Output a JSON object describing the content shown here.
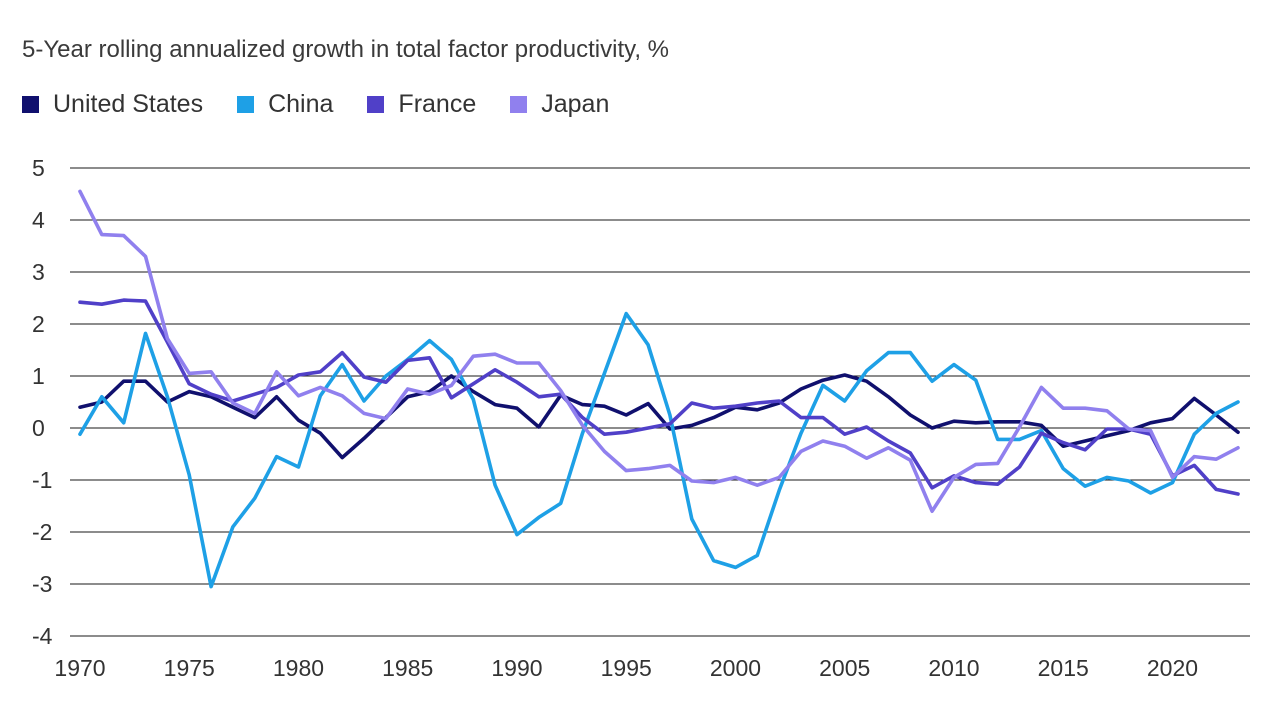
{
  "chart_data": {
    "type": "line",
    "title": "5-Year rolling annualized growth in total factor productivity, %",
    "xlabel": "",
    "ylabel": "",
    "ylim": [
      -4,
      5
    ],
    "xlim": [
      1970,
      2023
    ],
    "yticks": [
      5,
      4,
      3,
      2,
      1,
      0,
      -1,
      -2,
      -3,
      -4
    ],
    "xticks": [
      1970,
      1975,
      1980,
      1985,
      1990,
      1995,
      2000,
      2005,
      2010,
      2015,
      2020
    ],
    "grid": "horizontal",
    "legend_position": "top-left",
    "x": [
      1970,
      1971,
      1972,
      1973,
      1974,
      1975,
      1976,
      1977,
      1978,
      1979,
      1980,
      1981,
      1982,
      1983,
      1984,
      1985,
      1986,
      1987,
      1988,
      1989,
      1990,
      1991,
      1992,
      1993,
      1994,
      1995,
      1996,
      1997,
      1998,
      1999,
      2000,
      2001,
      2002,
      2003,
      2004,
      2005,
      2006,
      2007,
      2008,
      2009,
      2010,
      2011,
      2012,
      2013,
      2014,
      2015,
      2016,
      2017,
      2018,
      2019,
      2020,
      2021,
      2022,
      2023
    ],
    "series": [
      {
        "name": "United States",
        "color": "#10106e",
        "values": [
          0.4,
          0.5,
          0.9,
          0.9,
          0.5,
          0.7,
          0.6,
          0.4,
          0.2,
          0.6,
          0.15,
          -0.1,
          -0.57,
          -0.2,
          0.2,
          0.6,
          0.7,
          1.0,
          0.7,
          0.45,
          0.38,
          0.02,
          0.63,
          0.45,
          0.42,
          0.25,
          0.47,
          -0.02,
          0.05,
          0.2,
          0.4,
          0.35,
          0.48,
          0.75,
          0.92,
          1.02,
          0.9,
          0.6,
          0.25,
          0.0,
          0.13,
          0.1,
          0.12,
          0.12,
          0.05,
          -0.35,
          -0.25,
          -0.15,
          -0.05,
          0.1,
          0.18,
          0.57,
          0.25,
          -0.08
        ]
      },
      {
        "name": "China",
        "color": "#1ea0e6",
        "values": [
          -0.12,
          0.6,
          0.1,
          1.82,
          0.6,
          -0.9,
          -3.05,
          -1.9,
          -1.35,
          -0.55,
          -0.75,
          0.62,
          1.22,
          0.52,
          1.0,
          1.32,
          1.68,
          1.32,
          0.55,
          -1.1,
          -2.05,
          -1.72,
          -1.45,
          -0.1,
          1.05,
          2.2,
          1.6,
          0.25,
          -1.75,
          -2.55,
          -2.68,
          -2.45,
          -1.2,
          -0.1,
          0.82,
          0.52,
          1.1,
          1.45,
          1.45,
          0.9,
          1.22,
          0.92,
          -0.22,
          -0.22,
          -0.05,
          -0.78,
          -1.12,
          -0.95,
          -1.02,
          -1.25,
          -1.05,
          -0.12,
          0.28,
          0.5
        ]
      },
      {
        "name": "France",
        "color": "#5040c8",
        "values": [
          2.42,
          2.38,
          2.46,
          2.44,
          1.65,
          0.85,
          0.65,
          0.52,
          0.65,
          0.78,
          1.02,
          1.08,
          1.45,
          0.98,
          0.88,
          1.3,
          1.35,
          0.58,
          0.85,
          1.12,
          0.88,
          0.6,
          0.65,
          0.2,
          -0.12,
          -0.08,
          0.0,
          0.08,
          0.48,
          0.38,
          0.42,
          0.48,
          0.52,
          0.2,
          0.2,
          -0.12,
          0.02,
          -0.25,
          -0.48,
          -1.15,
          -0.92,
          -1.05,
          -1.08,
          -0.75,
          -0.1,
          -0.28,
          -0.42,
          -0.02,
          -0.02,
          -0.12,
          -0.92,
          -0.72,
          -1.18,
          -1.27
        ]
      },
      {
        "name": "Japan",
        "color": "#9080ee",
        "values": [
          4.55,
          3.72,
          3.7,
          3.3,
          1.72,
          1.05,
          1.08,
          0.48,
          0.28,
          1.08,
          0.62,
          0.78,
          0.62,
          0.28,
          0.18,
          0.75,
          0.65,
          0.82,
          1.38,
          1.42,
          1.25,
          1.25,
          0.72,
          0.05,
          -0.45,
          -0.82,
          -0.78,
          -0.72,
          -1.02,
          -1.05,
          -0.95,
          -1.1,
          -0.95,
          -0.45,
          -0.25,
          -0.35,
          -0.58,
          -0.38,
          -0.62,
          -1.6,
          -0.95,
          -0.7,
          -0.68,
          0.02,
          0.78,
          0.38,
          0.38,
          0.33,
          -0.02,
          -0.05,
          -0.95,
          -0.55,
          -0.6,
          -0.38
        ]
      }
    ]
  }
}
